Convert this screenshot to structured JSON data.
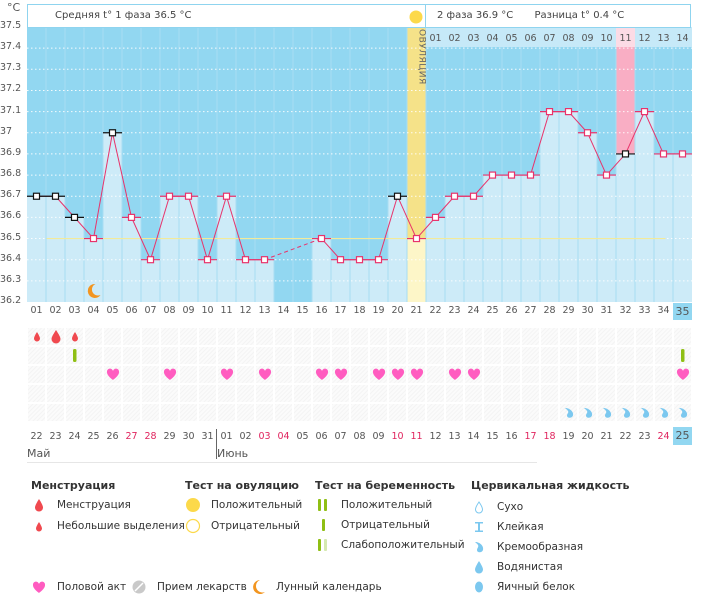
{
  "unit_label": "°C",
  "header": {
    "phase1_label": "Средняя t° 1 фаза 36.5 °C",
    "phase2_label": "2 фаза 36.9 °C",
    "diff_label": "Разница t° 0.4 °C",
    "ovulation_label": "ОВУЛЯЦИЯ"
  },
  "chart_data": {
    "type": "line",
    "title": "",
    "xlabel": "",
    "ylabel": "°C",
    "ylim": [
      36.2,
      37.5
    ],
    "yticks": [
      "37.5",
      "37.4",
      "37.3",
      "37.2",
      "37.1",
      "37",
      "36.9",
      "36.8",
      "36.7",
      "36.6",
      "36.5",
      "36.4",
      "36.3",
      "36.2"
    ],
    "cycle_days": [
      "01",
      "02",
      "03",
      "04",
      "05",
      "06",
      "07",
      "08",
      "09",
      "10",
      "11",
      "12",
      "13",
      "14",
      "15",
      "16",
      "17",
      "18",
      "19",
      "20",
      "21",
      "22",
      "23",
      "24",
      "25",
      "26",
      "27",
      "28",
      "29",
      "30",
      "31",
      "32",
      "33",
      "34",
      "35"
    ],
    "temperatures": [
      36.7,
      36.7,
      36.6,
      36.5,
      37.0,
      36.6,
      36.4,
      36.7,
      36.7,
      36.4,
      36.7,
      36.4,
      36.4,
      null,
      null,
      36.5,
      36.4,
      36.4,
      36.4,
      36.7,
      36.5,
      36.6,
      36.7,
      36.7,
      36.8,
      36.8,
      36.8,
      37.1,
      37.1,
      37.0,
      36.8,
      36.9,
      37.1,
      36.9,
      36.9
    ],
    "excluded_days": [
      "01",
      "02",
      "03",
      "05",
      "20",
      "32"
    ],
    "coverline": 36.5,
    "coverline_range_days": [
      "02",
      "34"
    ],
    "ovulation_day": "21",
    "luteal_day_labels": [
      "01",
      "02",
      "03",
      "04",
      "05",
      "06",
      "07",
      "08",
      "09",
      "10",
      "11",
      "12",
      "13",
      "14"
    ],
    "highlighted_luteal_day": "11",
    "current_day": "35",
    "grid": true
  },
  "dates": [
    "22",
    "23",
    "24",
    "25",
    "26",
    "27",
    "28",
    "29",
    "30",
    "31",
    "01",
    "02",
    "03",
    "04",
    "05",
    "06",
    "07",
    "08",
    "09",
    "10",
    "11",
    "12",
    "13",
    "14",
    "15",
    "16",
    "17",
    "18",
    "19",
    "20",
    "21",
    "22",
    "23",
    "24",
    "25"
  ],
  "weekend_indices": [
    5,
    6,
    12,
    13,
    19,
    20,
    26,
    27,
    33
  ],
  "months": [
    {
      "label": "Май",
      "start_index": 0
    },
    {
      "label": "Июнь",
      "start_index": 10
    }
  ],
  "markers": {
    "menstruation": {
      "0": "small",
      "1": "large",
      "2": "small"
    },
    "pregnancy_test": {
      "2": "negative",
      "34": "negative"
    },
    "intercourse": [
      4,
      7,
      10,
      12,
      15,
      16,
      18,
      19,
      20,
      22,
      23,
      34
    ],
    "cervical_fluid": {
      "28": "creamy",
      "29": "creamy",
      "30": "creamy",
      "31": "creamy",
      "32": "creamy",
      "33": "creamy",
      "34": "creamy"
    },
    "moon_day_index": 3
  },
  "legend": {
    "menstruation": {
      "title": "Менструация",
      "items": [
        "Менструация",
        "Небольшие выделения"
      ]
    },
    "ovulation_test": {
      "title": "Тест на овуляцию",
      "items": [
        "Положительный",
        "Отрицательный"
      ]
    },
    "pregnancy_test": {
      "title": "Тест на беременность",
      "items": [
        "Положительный",
        "Отрицательный",
        "Слабоположительный"
      ]
    },
    "cervical_fluid": {
      "title": "Цервикальная жидкость",
      "items": [
        "Сухо",
        "Клейкая",
        "Кремообразная",
        "Водянистая",
        "Яичный белок"
      ]
    },
    "bottom": [
      "Половой акт",
      "Прием лекарств",
      "Лунный календарь"
    ]
  },
  "colors": {
    "sky": "#92d7f1",
    "bar": "#cdebf8",
    "line": "#e8336b",
    "ovulation": "#f5e289",
    "highlight": "#f9aec4",
    "coverline": "#f3ea9a",
    "heart": "#ff5cc0",
    "drop": "#f0494f",
    "test": "#8fbf14",
    "fluid": "#7cc8ef",
    "moon": "#f29520"
  }
}
